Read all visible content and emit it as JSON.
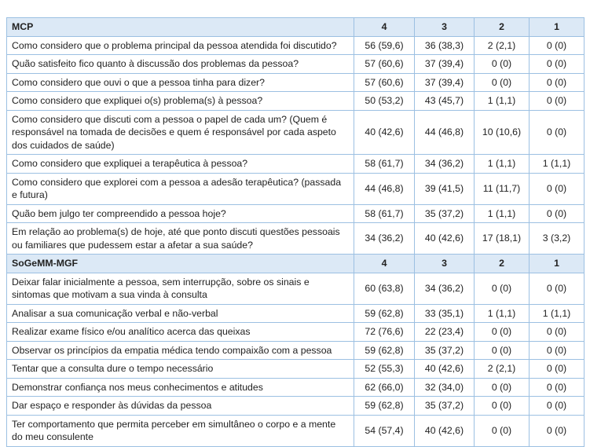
{
  "sections": [
    {
      "title": "MCP",
      "columns": [
        "4",
        "3",
        "2",
        "1"
      ],
      "rows": [
        [
          "Como considero que o problema principal da pessoa atendida foi discutido?",
          "56 (59,6)",
          "36 (38,3)",
          "2 (2,1)",
          "0 (0)"
        ],
        [
          "Quão satisfeito fico quanto à discussão dos problemas da pessoa?",
          "57 (60,6)",
          "37 (39,4)",
          "0 (0)",
          "0 (0)"
        ],
        [
          "Como considero que ouvi o que a pessoa tinha para dizer?",
          "57 (60,6)",
          "37 (39,4)",
          "0 (0)",
          "0 (0)"
        ],
        [
          "Como considero que expliquei o(s) problema(s) à pessoa?",
          "50 (53,2)",
          "43 (45,7)",
          "1 (1,1)",
          "0 (0)"
        ],
        [
          "Como considero que discuti com a pessoa o papel de cada um? (Quem é responsável na tomada de decisões e quem é responsável por cada aspeto dos cuidados de saúde)",
          "40 (42,6)",
          "44 (46,8)",
          "10 (10,6)",
          "0 (0)"
        ],
        [
          "Como considero que expliquei a terapêutica à pessoa?",
          "58 (61,7)",
          "34 (36,2)",
          "1 (1,1)",
          "1 (1,1)"
        ],
        [
          "Como considero que explorei com a pessoa a adesão terapêutica? (passada e futura)",
          "44 (46,8)",
          "39 (41,5)",
          "11 (11,7)",
          "0 (0)"
        ],
        [
          "Quão bem julgo ter compreendido a pessoa hoje?",
          "58 (61,7)",
          "35 (37,2)",
          "1 (1,1)",
          "0 (0)"
        ],
        [
          "Em relação ao problema(s) de hoje, até que ponto discuti questões pessoais ou familiares que pudessem estar a afetar a sua saúde?",
          "34 (36,2)",
          "40 (42,6)",
          "17 (18,1)",
          "3 (3,2)"
        ]
      ]
    },
    {
      "title": "SoGeMM-MGF",
      "columns": [
        "4",
        "3",
        "2",
        "1"
      ],
      "rows": [
        [
          "Deixar falar inicialmente a pessoa, sem interrupção, sobre os sinais e sintomas que motivam a sua vinda à consulta",
          "60 (63,8)",
          "34 (36,2)",
          "0 (0)",
          "0 (0)"
        ],
        [
          "Analisar a sua comunicação verbal e não-verbal",
          "59 (62,8)",
          "33 (35,1)",
          "1 (1,1)",
          "1 (1,1)"
        ],
        [
          "Realizar exame físico e/ou analítico acerca das queixas",
          "72 (76,6)",
          "22 (23,4)",
          "0 (0)",
          "0 (0)"
        ],
        [
          "Observar os princípios da empatia médica tendo compaixão com a pessoa",
          "59 (62,8)",
          "35 (37,2)",
          "0 (0)",
          "0 (0)"
        ],
        [
          "Tentar que a consulta dure o tempo necessário",
          "52 (55,3)",
          "40 (42,6)",
          "2 (2,1)",
          "0 (0)"
        ],
        [
          "Demonstrar confiança nos meus conhecimentos e atitudes",
          "62 (66,0)",
          "32 (34,0)",
          "0 (0)",
          "0 (0)"
        ],
        [
          "Dar espaço e responder às dúvidas da pessoa",
          "59 (62,8)",
          "35 (37,2)",
          "0 (0)",
          "0 (0)"
        ],
        [
          "Ter comportamento que permita perceber em simultâneo o corpo e a mente do meu consulente",
          "54 (57,4)",
          "40 (42,6)",
          "0 (0)",
          "0 (0)"
        ]
      ]
    }
  ]
}
